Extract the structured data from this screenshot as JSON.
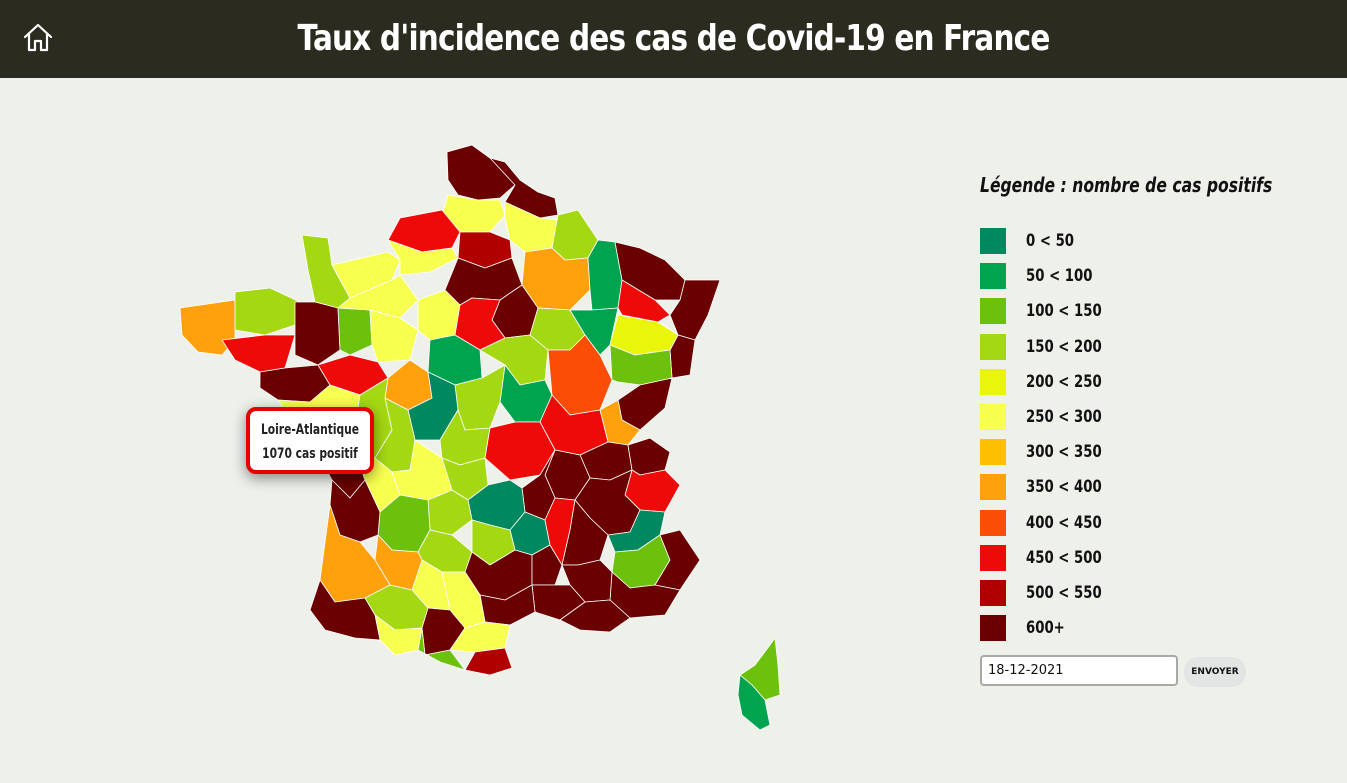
{
  "header": {
    "title": "Taux d'incidence des cas de Covid-19 en France",
    "home_icon": "home-icon"
  },
  "tooltip": {
    "department": "Loire-Atlantique",
    "value_text": "1070 cas positif"
  },
  "legend": {
    "title": "Légende : nombre de cas positifs",
    "items": [
      {
        "label": "0 < 50",
        "color": "#00895f"
      },
      {
        "label": "50 < 100",
        "color": "#00a44f"
      },
      {
        "label": "100 < 150",
        "color": "#6cc10d"
      },
      {
        "label": "150 < 200",
        "color": "#a4d813"
      },
      {
        "label": "200 < 250",
        "color": "#e9f50a"
      },
      {
        "label": "250 < 300",
        "color": "#f7ff4f"
      },
      {
        "label": "300 < 350",
        "color": "#fec001"
      },
      {
        "label": "350 < 400",
        "color": "#ffa00d"
      },
      {
        "label": "400 < 450",
        "color": "#fc4d07"
      },
      {
        "label": "450 < 500",
        "color": "#ef0a0a"
      },
      {
        "label": "500 < 550",
        "color": "#b10000"
      },
      {
        "label": "600+",
        "color": "#6a0000"
      }
    ]
  },
  "form": {
    "date_value": "18-12-2021",
    "submit_label": "ENVOYER"
  }
}
